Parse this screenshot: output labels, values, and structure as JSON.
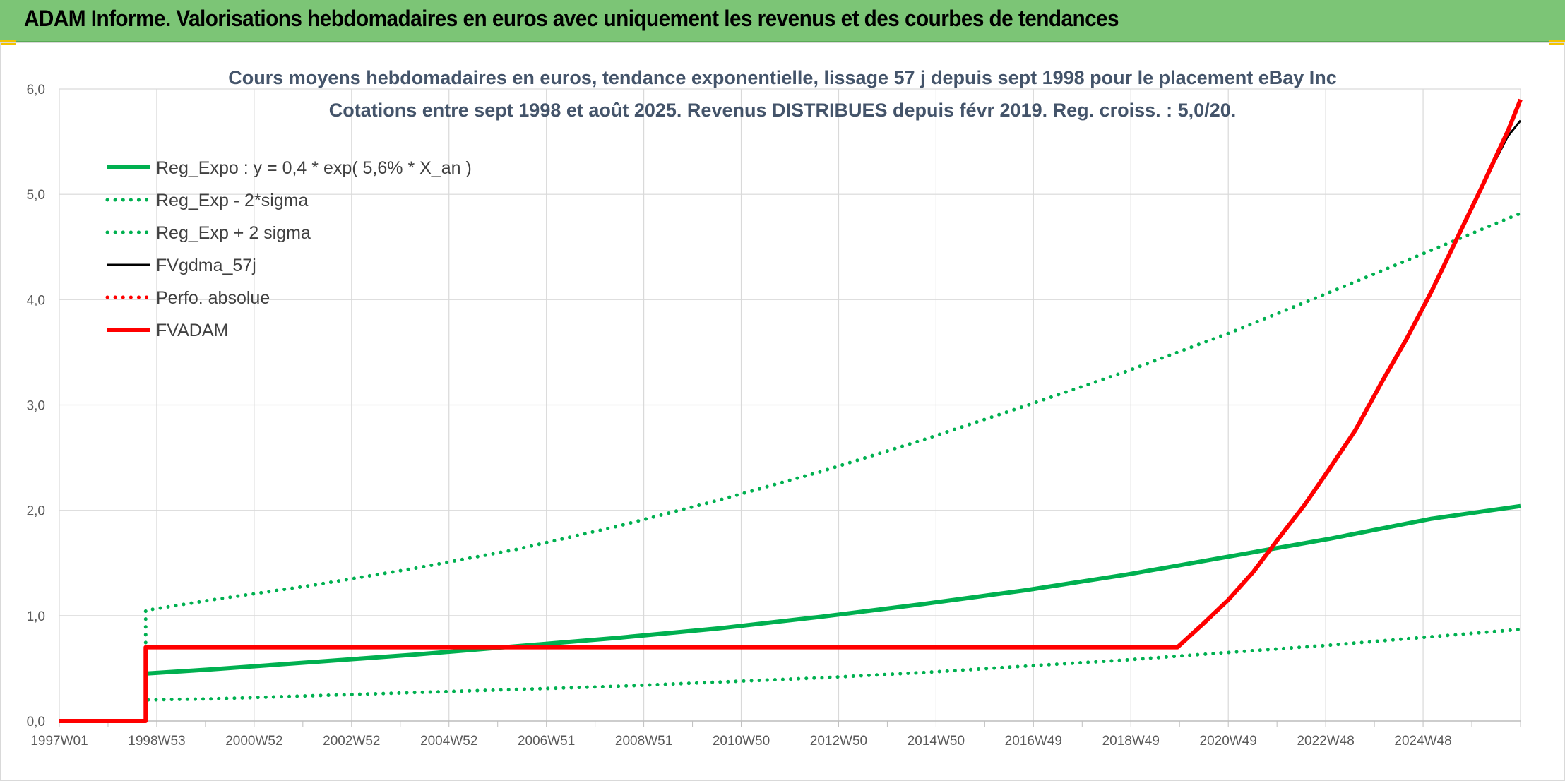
{
  "header": {
    "title": "ADAM Informe. Valorisations hebdomadaires en euros avec uniquement les revenus et des courbes de tendances"
  },
  "colors": {
    "header_bg": "#7cc576",
    "reg_expo": "#00b050",
    "fvgdma": "#000000",
    "fvadam": "#ff0000",
    "perfo": "#ff0000"
  },
  "chart_data": {
    "type": "line",
    "title_line1": "Cours moyens hebdomadaires en euros, tendance exponentielle, lissage 57 j depuis sept 1998 pour le placement eBay Inc",
    "title_line2": "Cotations entre sept 1998 et août 2025. Revenus DISTRIBUES depuis févr 2019. Reg. croiss. : 5,0/20.",
    "xlabel": "",
    "ylabel": "",
    "x_tick_labels": [
      "1997W01",
      "1998W53",
      "2000W52",
      "2002W52",
      "2004W52",
      "2006W51",
      "2008W51",
      "2010W50",
      "2012W50",
      "2014W50",
      "2016W49",
      "2018W49",
      "2020W49",
      "2022W48",
      "2024W48"
    ],
    "x_range_years": [
      1997.0,
      2025.75
    ],
    "ylim": [
      0,
      6
    ],
    "y_ticks": [
      0,
      1,
      2,
      3,
      4,
      5,
      6
    ],
    "y_tick_labels": [
      "0,0",
      "1,0",
      "2,0",
      "3,0",
      "4,0",
      "5,0",
      "6,0"
    ],
    "grid": true,
    "legend_position": "top-left",
    "series": [
      {
        "name": "Reg_Expo : y = 0,4 * exp( 5,6% *  X_an )",
        "style": "solid-thick",
        "color": "#00b050",
        "points": [
          [
            1998.7,
            0.45
          ],
          [
            2000.0,
            0.49
          ],
          [
            2002.0,
            0.56
          ],
          [
            2004.0,
            0.63
          ],
          [
            2006.0,
            0.71
          ],
          [
            2008.0,
            0.79
          ],
          [
            2010.0,
            0.88
          ],
          [
            2012.0,
            0.99
          ],
          [
            2014.0,
            1.11
          ],
          [
            2016.0,
            1.24
          ],
          [
            2018.0,
            1.39
          ],
          [
            2020.0,
            1.56
          ],
          [
            2022.0,
            1.73
          ],
          [
            2024.0,
            1.92
          ],
          [
            2025.75,
            2.04
          ]
        ]
      },
      {
        "name": "Reg_Exp - 2*sigma",
        "style": "dotted",
        "color": "#00b050",
        "points": [
          [
            1998.7,
            0.0
          ],
          [
            1998.7,
            0.2
          ],
          [
            2000.0,
            0.21
          ],
          [
            2002.0,
            0.24
          ],
          [
            2004.0,
            0.27
          ],
          [
            2006.0,
            0.3
          ],
          [
            2008.0,
            0.33
          ],
          [
            2010.0,
            0.37
          ],
          [
            2012.0,
            0.41
          ],
          [
            2014.0,
            0.46
          ],
          [
            2016.0,
            0.52
          ],
          [
            2018.0,
            0.58
          ],
          [
            2020.0,
            0.65
          ],
          [
            2022.0,
            0.72
          ],
          [
            2024.0,
            0.8
          ],
          [
            2025.75,
            0.87
          ]
        ]
      },
      {
        "name": "Reg_Exp + 2 sigma",
        "style": "dotted",
        "color": "#00b050",
        "points": [
          [
            1998.7,
            0.0
          ],
          [
            1998.7,
            1.05
          ],
          [
            2000.0,
            1.15
          ],
          [
            2002.0,
            1.29
          ],
          [
            2004.0,
            1.45
          ],
          [
            2006.0,
            1.63
          ],
          [
            2008.0,
            1.85
          ],
          [
            2010.0,
            2.1
          ],
          [
            2012.0,
            2.37
          ],
          [
            2014.0,
            2.67
          ],
          [
            2016.0,
            2.99
          ],
          [
            2018.0,
            3.32
          ],
          [
            2020.0,
            3.68
          ],
          [
            2022.0,
            4.07
          ],
          [
            2024.0,
            4.47
          ],
          [
            2025.75,
            4.82
          ]
        ]
      },
      {
        "name": "FVgdma_57j",
        "style": "solid",
        "color": "#000000",
        "points": [
          [
            1997.0,
            0.0
          ],
          [
            1998.7,
            0.0
          ],
          [
            1998.7,
            0.7
          ],
          [
            2019.0,
            0.7
          ],
          [
            2019.5,
            0.92
          ],
          [
            2020.0,
            1.15
          ],
          [
            2020.5,
            1.42
          ],
          [
            2021.0,
            1.74
          ],
          [
            2021.5,
            2.05
          ],
          [
            2022.0,
            2.4
          ],
          [
            2022.5,
            2.76
          ],
          [
            2023.0,
            3.2
          ],
          [
            2023.5,
            3.62
          ],
          [
            2024.0,
            4.08
          ],
          [
            2024.5,
            4.58
          ],
          [
            2025.0,
            5.08
          ],
          [
            2025.5,
            5.55
          ],
          [
            2025.75,
            5.7
          ]
        ]
      },
      {
        "name": "Perfo. absolue",
        "style": "dotted",
        "color": "#ff0000",
        "points": []
      },
      {
        "name": "FVADAM",
        "style": "solid-thick",
        "color": "#ff0000",
        "points": [
          [
            1997.0,
            0.0
          ],
          [
            1998.7,
            0.0
          ],
          [
            1998.7,
            0.7
          ],
          [
            2019.0,
            0.7
          ],
          [
            2019.5,
            0.92
          ],
          [
            2020.0,
            1.15
          ],
          [
            2020.5,
            1.42
          ],
          [
            2021.0,
            1.74
          ],
          [
            2021.5,
            2.05
          ],
          [
            2022.0,
            2.4
          ],
          [
            2022.5,
            2.76
          ],
          [
            2023.0,
            3.2
          ],
          [
            2023.5,
            3.62
          ],
          [
            2024.0,
            4.08
          ],
          [
            2024.5,
            4.58
          ],
          [
            2025.0,
            5.08
          ],
          [
            2025.5,
            5.6
          ],
          [
            2025.75,
            5.9
          ]
        ]
      }
    ]
  }
}
